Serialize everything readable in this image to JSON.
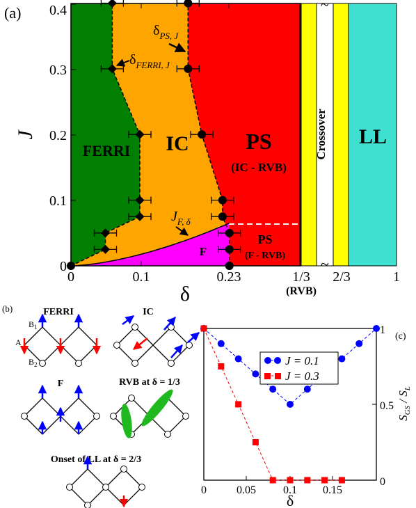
{
  "chart_data": [
    {
      "type": "area",
      "panel_label": "(a)",
      "xlabel": "δ",
      "ylabel": "J",
      "xlim": [
        0,
        0.25
      ],
      "ylim": [
        0,
        0.4
      ],
      "xticks": [
        "0",
        "0.1",
        "0.23"
      ],
      "extra_xticks": [
        "1/3",
        "2/3",
        "1"
      ],
      "rvb_label": "(RVB)",
      "yticks": [
        "0",
        "0.1",
        "0.2",
        "0.3",
        "0.4"
      ],
      "tilde": "~",
      "regions": [
        {
          "name": "FERRI",
          "color": "#007f00"
        },
        {
          "name": "IC",
          "color": "#ffa500"
        },
        {
          "name": "PS",
          "sub": "(IC - RVB)",
          "color": "#ff0000"
        },
        {
          "name": "F",
          "color": "#ff00ff"
        },
        {
          "name": "PS",
          "sub": "(F - RVB)",
          "color": "#ff0000"
        },
        {
          "name": "Crossover",
          "color": "#ffff00"
        },
        {
          "name": "LL",
          "color": "#40e0d0"
        }
      ],
      "annotations": [
        {
          "main": "δ",
          "sub": "PS, J"
        },
        {
          "main": "δ",
          "sub": "FERRI, J"
        },
        {
          "main": "J",
          "sub": "F, δ"
        }
      ],
      "ferri_boundary": [
        {
          "delta": 0.0,
          "J": 0.0
        },
        {
          "delta": 0.05,
          "J": 0.025
        },
        {
          "delta": 0.05,
          "J": 0.05
        },
        {
          "delta": 0.1,
          "J": 0.075
        },
        {
          "delta": 0.1,
          "J": 0.1
        },
        {
          "delta": 0.1,
          "J": 0.2
        },
        {
          "delta": 0.06,
          "J": 0.3
        },
        {
          "delta": 0.06,
          "J": 0.4
        }
      ],
      "ps_boundary": [
        {
          "delta": 0.23,
          "J": 0.0
        },
        {
          "delta": 0.23,
          "J": 0.025
        },
        {
          "delta": 0.23,
          "J": 0.05
        },
        {
          "delta": 0.22,
          "J": 0.075
        },
        {
          "delta": 0.22,
          "J": 0.1
        },
        {
          "delta": 0.19,
          "J": 0.2
        },
        {
          "delta": 0.17,
          "J": 0.3
        },
        {
          "delta": 0.17,
          "J": 0.4
        }
      ],
      "f_boundary_J_at_0_23": 0.065
    },
    {
      "type": "line",
      "panel_label": "(c)",
      "xlabel": "δ",
      "ylabel": "S_GS / S_L",
      "ylabel_main": "S",
      "ylabel_sub1": "GS",
      "ylabel_sep": "/",
      "ylabel_main2": "S",
      "ylabel_sub2": "L",
      "xlim": [
        0,
        0.2
      ],
      "ylim": [
        0,
        1
      ],
      "xticks": [
        "0",
        "0.05",
        "0.1",
        "0.15"
      ],
      "yticks": [
        "0",
        "0.5",
        "1"
      ],
      "series": [
        {
          "name": "J = 0.1",
          "color": "#0000ff",
          "marker": "circle",
          "x": [
            0,
            0.02,
            0.04,
            0.06,
            0.08,
            0.1,
            0.12,
            0.14,
            0.16,
            0.18,
            0.2
          ],
          "y": [
            1,
            0.9,
            0.8,
            0.7,
            0.6,
            0.5,
            0.6,
            0.7,
            0.8,
            0.9,
            1
          ]
        },
        {
          "name": "J = 0.3",
          "color": "#ff0000",
          "marker": "square",
          "x": [
            0,
            0.02,
            0.04,
            0.06,
            0.08,
            0.1,
            0.12,
            0.14,
            0.16
          ],
          "y": [
            1,
            0.75,
            0.5,
            0.25,
            0.0,
            0.0,
            0.0,
            0.0,
            0.0
          ]
        }
      ]
    }
  ],
  "panel_b": {
    "label": "(b)",
    "titles": {
      "ferri": "FERRI",
      "ic": "IC",
      "f": "F",
      "rvb": "RVB at  δ = 1/3",
      "ll": "Onset of LL at  δ = 2/3"
    },
    "site_labels": {
      "a": "A",
      "b1": "B",
      "b1_sub": "1",
      "b2": "B",
      "b2_sub": "2"
    }
  }
}
